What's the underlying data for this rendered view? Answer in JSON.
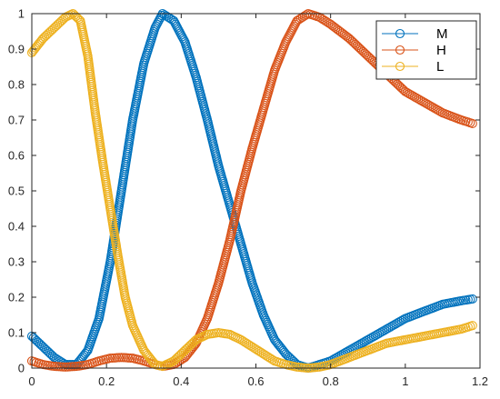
{
  "chart_data": {
    "type": "scatter",
    "title": "",
    "xlabel": "",
    "ylabel": "",
    "xlim": [
      0,
      1.2
    ],
    "ylim": [
      0,
      1
    ],
    "xticks": [
      "0",
      "0.2",
      "0.4",
      "0.6",
      "0.8",
      "1",
      "1.2"
    ],
    "yticks": [
      "0",
      "0.1",
      "0.2",
      "0.3",
      "0.4",
      "0.5",
      "0.6",
      "0.7",
      "0.8",
      "0.9",
      "1"
    ],
    "grid": false,
    "legend_position": "top-right",
    "marker": "open-circle",
    "series": [
      {
        "name": "M",
        "color": "#0072BD",
        "points": [
          [
            0.0,
            0.09
          ],
          [
            0.03,
            0.06
          ],
          [
            0.06,
            0.03
          ],
          [
            0.09,
            0.01
          ],
          [
            0.12,
            0.01
          ],
          [
            0.15,
            0.05
          ],
          [
            0.18,
            0.14
          ],
          [
            0.21,
            0.3
          ],
          [
            0.24,
            0.5
          ],
          [
            0.27,
            0.7
          ],
          [
            0.3,
            0.86
          ],
          [
            0.33,
            0.96
          ],
          [
            0.35,
            1.0
          ],
          [
            0.38,
            0.98
          ],
          [
            0.41,
            0.92
          ],
          [
            0.44,
            0.82
          ],
          [
            0.47,
            0.7
          ],
          [
            0.5,
            0.57
          ],
          [
            0.53,
            0.46
          ],
          [
            0.56,
            0.35
          ],
          [
            0.59,
            0.24
          ],
          [
            0.62,
            0.15
          ],
          [
            0.65,
            0.08
          ],
          [
            0.68,
            0.04
          ],
          [
            0.71,
            0.01
          ],
          [
            0.74,
            0.0
          ],
          [
            0.77,
            0.01
          ],
          [
            0.8,
            0.02
          ],
          [
            0.85,
            0.05
          ],
          [
            0.9,
            0.08
          ],
          [
            0.95,
            0.11
          ],
          [
            1.0,
            0.14
          ],
          [
            1.05,
            0.16
          ],
          [
            1.1,
            0.18
          ],
          [
            1.15,
            0.19
          ],
          [
            1.18,
            0.195
          ]
        ]
      },
      {
        "name": "H",
        "color": "#D95319",
        "points": [
          [
            0.0,
            0.02
          ],
          [
            0.03,
            0.01
          ],
          [
            0.06,
            0.005
          ],
          [
            0.09,
            0.003
          ],
          [
            0.12,
            0.005
          ],
          [
            0.15,
            0.01
          ],
          [
            0.18,
            0.02
          ],
          [
            0.21,
            0.028
          ],
          [
            0.24,
            0.03
          ],
          [
            0.27,
            0.028
          ],
          [
            0.3,
            0.02
          ],
          [
            0.33,
            0.01
          ],
          [
            0.35,
            0.005
          ],
          [
            0.38,
            0.01
          ],
          [
            0.41,
            0.03
          ],
          [
            0.44,
            0.07
          ],
          [
            0.47,
            0.14
          ],
          [
            0.5,
            0.24
          ],
          [
            0.53,
            0.36
          ],
          [
            0.56,
            0.5
          ],
          [
            0.59,
            0.62
          ],
          [
            0.62,
            0.73
          ],
          [
            0.65,
            0.84
          ],
          [
            0.68,
            0.92
          ],
          [
            0.71,
            0.98
          ],
          [
            0.74,
            1.0
          ],
          [
            0.77,
            0.99
          ],
          [
            0.8,
            0.97
          ],
          [
            0.85,
            0.93
          ],
          [
            0.9,
            0.88
          ],
          [
            0.95,
            0.83
          ],
          [
            1.0,
            0.78
          ],
          [
            1.05,
            0.75
          ],
          [
            1.1,
            0.72
          ],
          [
            1.15,
            0.7
          ],
          [
            1.18,
            0.69
          ]
        ]
      },
      {
        "name": "L",
        "color": "#EDB120",
        "points": [
          [
            0.0,
            0.89
          ],
          [
            0.03,
            0.93
          ],
          [
            0.06,
            0.96
          ],
          [
            0.09,
            0.99
          ],
          [
            0.11,
            1.0
          ],
          [
            0.13,
            0.98
          ],
          [
            0.15,
            0.88
          ],
          [
            0.17,
            0.72
          ],
          [
            0.19,
            0.58
          ],
          [
            0.21,
            0.45
          ],
          [
            0.23,
            0.32
          ],
          [
            0.25,
            0.2
          ],
          [
            0.27,
            0.12
          ],
          [
            0.3,
            0.05
          ],
          [
            0.33,
            0.01
          ],
          [
            0.35,
            0.005
          ],
          [
            0.38,
            0.02
          ],
          [
            0.41,
            0.05
          ],
          [
            0.44,
            0.08
          ],
          [
            0.47,
            0.095
          ],
          [
            0.5,
            0.1
          ],
          [
            0.53,
            0.095
          ],
          [
            0.56,
            0.08
          ],
          [
            0.59,
            0.06
          ],
          [
            0.62,
            0.04
          ],
          [
            0.65,
            0.02
          ],
          [
            0.68,
            0.01
          ],
          [
            0.71,
            0.003
          ],
          [
            0.74,
            0.0
          ],
          [
            0.77,
            0.003
          ],
          [
            0.8,
            0.01
          ],
          [
            0.85,
            0.03
          ],
          [
            0.9,
            0.05
          ],
          [
            0.95,
            0.07
          ],
          [
            1.0,
            0.08
          ],
          [
            1.05,
            0.09
          ],
          [
            1.1,
            0.1
          ],
          [
            1.15,
            0.11
          ],
          [
            1.18,
            0.12
          ]
        ]
      }
    ]
  }
}
